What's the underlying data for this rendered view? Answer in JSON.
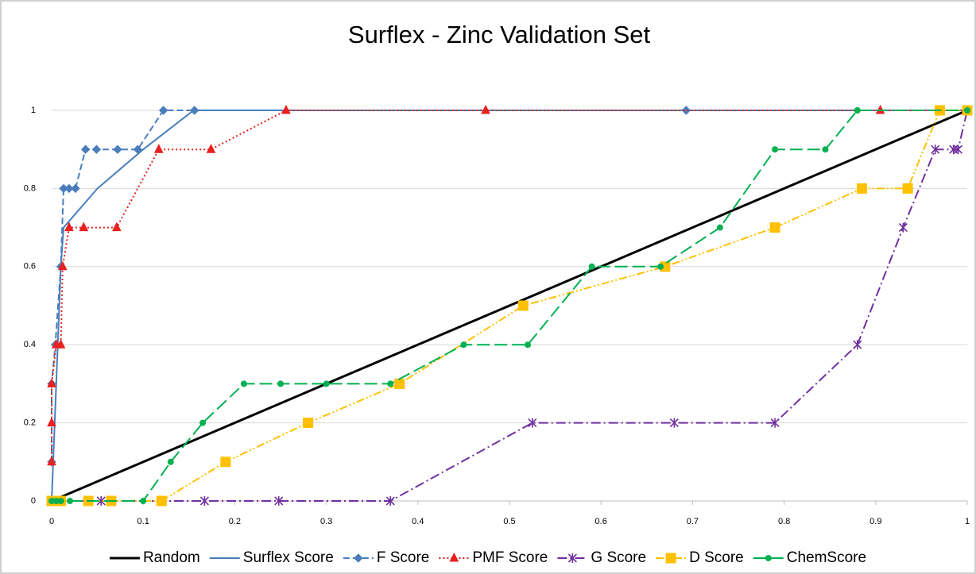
{
  "chart_data": {
    "type": "line",
    "title": "Surflex - Zinc Validation Set",
    "xlim": [
      0,
      1
    ],
    "xticks": [
      0,
      0.1,
      0.2,
      0.3,
      0.4,
      0.5,
      0.6,
      0.7,
      0.8,
      0.9,
      1
    ],
    "ylim": [
      0,
      1
    ],
    "yticks": [
      0,
      0.2,
      0.4,
      0.6,
      0.8,
      1
    ],
    "grid": true,
    "legend": "bottom",
    "series": [
      {
        "name": "Random",
        "color": "#000000",
        "dash": "solid",
        "marker": "none",
        "x": [
          0,
          1
        ],
        "values": [
          0,
          1
        ]
      },
      {
        "name": "Surflex Score",
        "color": "#4a7ebb",
        "dash": "solid",
        "marker": "none",
        "x": [
          0,
          0.005,
          0.01,
          0.013,
          0.05,
          0.1,
          0.155,
          1
        ],
        "values": [
          0,
          0.3,
          0.6,
          0.7,
          0.8,
          0.9,
          1,
          1
        ]
      },
      {
        "name": "F Score",
        "color": "#4a7ebb",
        "dash": "dashed",
        "marker": "diamond",
        "x": [
          0,
          0,
          0.004,
          0.01,
          0.013,
          0.019,
          0.026,
          0.037,
          0.049,
          0.072,
          0.094,
          0.122,
          0.156,
          0.693,
          1
        ],
        "values": [
          0.1,
          0.3,
          0.4,
          0.6,
          0.8,
          0.8,
          0.8,
          0.9,
          0.9,
          0.9,
          0.9,
          1,
          1,
          1,
          1
        ]
      },
      {
        "name": "PMF Score",
        "color": "#e8201f",
        "dash": "dotted",
        "marker": "triangle",
        "x": [
          0,
          0,
          0,
          0.005,
          0.01,
          0.012,
          0.019,
          0.035,
          0.071,
          0.117,
          0.174,
          0.256,
          0.474,
          0.905,
          1
        ],
        "values": [
          0.1,
          0.2,
          0.3,
          0.4,
          0.4,
          0.6,
          0.7,
          0.7,
          0.7,
          0.9,
          0.9,
          1,
          1,
          1,
          1
        ]
      },
      {
        "name": "G Score",
        "color": "#7030a0",
        "dash": "dashdot",
        "marker": "asterisk",
        "x": [
          0,
          0.054,
          0.167,
          0.248,
          0.37,
          0.525,
          0.68,
          0.79,
          0.88,
          0.93,
          0.965,
          0.985,
          0.99,
          1
        ],
        "values": [
          0,
          0,
          0,
          0,
          0,
          0.2,
          0.2,
          0.2,
          0.4,
          0.7,
          0.9,
          0.9,
          0.9,
          1
        ]
      },
      {
        "name": "D Score",
        "color": "#ffc000",
        "dash": "dashdotdot",
        "marker": "square",
        "x": [
          0,
          0.01,
          0.04,
          0.065,
          0.12,
          0.19,
          0.28,
          0.38,
          0.515,
          0.67,
          0.79,
          0.885,
          0.935,
          0.97,
          1
        ],
        "values": [
          0,
          0,
          0,
          0,
          0,
          0.1,
          0.2,
          0.3,
          0.5,
          0.6,
          0.7,
          0.8,
          0.8,
          1,
          1
        ]
      },
      {
        "name": "ChemScore",
        "color": "#00b050",
        "dash": "longdash",
        "marker": "circle",
        "x": [
          0,
          0.005,
          0.01,
          0.02,
          0.1,
          0.13,
          0.165,
          0.21,
          0.25,
          0.3,
          0.37,
          0.45,
          0.52,
          0.59,
          0.665,
          0.73,
          0.79,
          0.845,
          0.88,
          1
        ],
        "values": [
          0,
          0,
          0,
          0,
          0,
          0.1,
          0.2,
          0.3,
          0.3,
          0.3,
          0.3,
          0.4,
          0.4,
          0.6,
          0.6,
          0.7,
          0.9,
          0.9,
          1,
          1
        ]
      }
    ]
  }
}
